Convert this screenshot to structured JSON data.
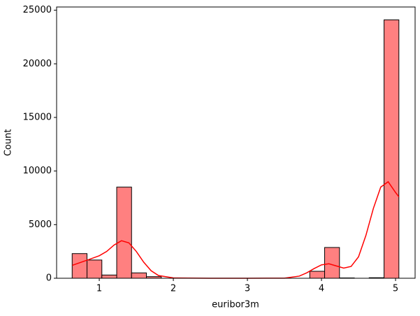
{
  "chart_data": {
    "type": "histogram",
    "xlabel": "euribor3m",
    "ylabel": "Count",
    "bins": [
      0.634,
      0.8345,
      1.035,
      1.2355,
      1.436,
      1.6365,
      1.837,
      2.0375,
      2.238,
      2.4385,
      2.639,
      2.8395,
      3.04,
      3.2405,
      3.441,
      3.6415,
      3.842,
      4.0425,
      4.243,
      4.4435,
      4.644,
      4.8445,
      5.045
    ],
    "counts": [
      2300,
      1700,
      300,
      8500,
      500,
      150,
      0,
      0,
      0,
      0,
      0,
      0,
      0,
      0,
      0,
      0,
      650,
      2870,
      30,
      0,
      50,
      24100
    ],
    "color": "#ff8080",
    "edgecolor": "#000000",
    "kde": {
      "color": "#ff0000",
      "x": [
        0.634,
        0.8,
        1.0,
        1.1,
        1.2,
        1.3,
        1.4,
        1.5,
        1.6,
        1.7,
        1.8,
        2.0,
        2.5,
        3.0,
        3.5,
        3.7,
        3.8,
        3.9,
        4.0,
        4.1,
        4.2,
        4.3,
        4.4,
        4.5,
        4.6,
        4.7,
        4.8,
        4.9,
        5.0,
        5.045
      ],
      "values": [
        1200,
        1600,
        2100,
        2500,
        3100,
        3500,
        3300,
        2500,
        1500,
        700,
        250,
        30,
        0,
        0,
        10,
        200,
        500,
        900,
        1250,
        1350,
        1150,
        950,
        1100,
        2000,
        4000,
        6500,
        8500,
        9000,
        8000,
        7600
      ]
    },
    "xlim": [
      0.424,
      5.264
    ],
    "ylim": [
      0,
      25300
    ],
    "xticks": [
      1,
      2,
      3,
      4,
      5
    ],
    "yticks": [
      0,
      5000,
      10000,
      15000,
      20000,
      25000
    ]
  }
}
